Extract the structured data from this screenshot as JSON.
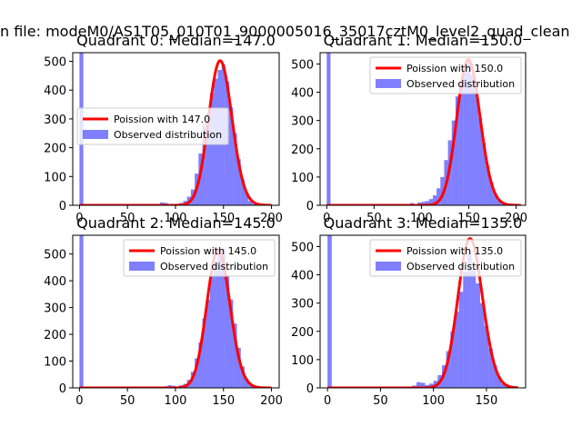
{
  "suptitle": "n file: modeM0/AS1T05_010T01_9000005016_35017cztM0_level2_quad_clean",
  "colors": {
    "line": "#ff0000",
    "bars": "#0000ff",
    "axis": "#000000",
    "legend_border": "#cccccc"
  },
  "chart_data": [
    {
      "type": "bar",
      "title": "Quadrant 0: Median=147.0",
      "median": 147.0,
      "xlim": [
        -7,
        208
      ],
      "ylim": [
        0,
        530
      ],
      "xticks": [
        0,
        50,
        100,
        150,
        200
      ],
      "xtick_labels": [
        "0",
        "50",
        "100",
        "150",
        "200"
      ],
      "yticks": [
        0,
        100,
        200,
        300,
        400,
        500
      ],
      "ytick_labels": [
        "0",
        "100",
        "200",
        "300",
        "400",
        "500"
      ],
      "legend": {
        "loc": "center-left",
        "line_label": "Poission with 147.0",
        "bar_label": "Observed distribution"
      },
      "bin_width": 4,
      "bins": [
        [
          0,
          530
        ],
        [
          84,
          10
        ],
        [
          88,
          8
        ],
        [
          100,
          5
        ],
        [
          104,
          8
        ],
        [
          108,
          15
        ],
        [
          112,
          30
        ],
        [
          116,
          55
        ],
        [
          120,
          110
        ],
        [
          124,
          180
        ],
        [
          128,
          280
        ],
        [
          132,
          320
        ],
        [
          136,
          390
        ],
        [
          140,
          440
        ],
        [
          144,
          470
        ],
        [
          148,
          490
        ],
        [
          152,
          430
        ],
        [
          156,
          340
        ],
        [
          160,
          250
        ],
        [
          164,
          160
        ],
        [
          168,
          90
        ],
        [
          172,
          45
        ],
        [
          176,
          15
        ],
        [
          180,
          5
        ]
      ],
      "poisson": {
        "mean": 147,
        "scale": 502,
        "x_range": [
          0,
          200
        ]
      }
    },
    {
      "type": "bar",
      "title": "Quadrant 1: Median=150.0",
      "median": 150.0,
      "xlim": [
        -7,
        210
      ],
      "ylim": [
        0,
        540
      ],
      "xticks": [
        0,
        50,
        100,
        150,
        200
      ],
      "xtick_labels": [
        "0",
        "50",
        "100",
        "150",
        "200"
      ],
      "yticks": [
        0,
        100,
        200,
        300,
        400,
        500
      ],
      "ytick_labels": [
        "0",
        "100",
        "200",
        "300",
        "400",
        "500"
      ],
      "legend": {
        "loc": "upper-right",
        "line_label": "Poission with 150.0",
        "bar_label": "Observed distribution"
      },
      "bin_width": 4,
      "bins": [
        [
          0,
          540
        ],
        [
          88,
          8
        ],
        [
          96,
          10
        ],
        [
          100,
          12
        ],
        [
          104,
          15
        ],
        [
          108,
          22
        ],
        [
          112,
          35
        ],
        [
          116,
          60
        ],
        [
          120,
          100
        ],
        [
          124,
          160
        ],
        [
          128,
          230
        ],
        [
          132,
          300
        ],
        [
          136,
          385
        ],
        [
          140,
          440
        ],
        [
          144,
          470
        ],
        [
          148,
          510
        ],
        [
          152,
          460
        ],
        [
          156,
          400
        ],
        [
          160,
          310
        ],
        [
          164,
          220
        ],
        [
          168,
          140
        ],
        [
          172,
          80
        ],
        [
          176,
          40
        ],
        [
          180,
          18
        ],
        [
          184,
          5
        ]
      ],
      "poisson": {
        "mean": 150,
        "scale": 515,
        "x_range": [
          0,
          205
        ]
      }
    },
    {
      "type": "bar",
      "title": "Quadrant 2: Median=145.0",
      "median": 145.0,
      "xlim": [
        -7,
        208
      ],
      "ylim": [
        0,
        570
      ],
      "xticks": [
        0,
        50,
        100,
        150,
        200
      ],
      "xtick_labels": [
        "0",
        "50",
        "100",
        "150",
        "200"
      ],
      "yticks": [
        0,
        100,
        200,
        300,
        400,
        500
      ],
      "ytick_labels": [
        "0",
        "100",
        "200",
        "300",
        "400",
        "500"
      ],
      "legend": {
        "loc": "upper-right",
        "line_label": "Poission with 145.0",
        "bar_label": "Observed distribution"
      },
      "bin_width": 4,
      "bins": [
        [
          0,
          570
        ],
        [
          88,
          6
        ],
        [
          92,
          10
        ],
        [
          96,
          8
        ],
        [
          104,
          10
        ],
        [
          108,
          15
        ],
        [
          112,
          30
        ],
        [
          116,
          60
        ],
        [
          120,
          110
        ],
        [
          124,
          170
        ],
        [
          128,
          260
        ],
        [
          132,
          330
        ],
        [
          136,
          420
        ],
        [
          140,
          470
        ],
        [
          144,
          510
        ],
        [
          148,
          520
        ],
        [
          152,
          420
        ],
        [
          156,
          330
        ],
        [
          160,
          240
        ],
        [
          164,
          150
        ],
        [
          168,
          80
        ],
        [
          172,
          35
        ],
        [
          176,
          15
        ],
        [
          180,
          5
        ]
      ],
      "poisson": {
        "mean": 145,
        "scale": 515,
        "x_range": [
          0,
          200
        ]
      }
    },
    {
      "type": "bar",
      "title": "Quadrant 3: Median=135.0",
      "median": 135.0,
      "xlim": [
        -7,
        187
      ],
      "ylim": [
        0,
        540
      ],
      "xticks": [
        0,
        50,
        100,
        150
      ],
      "xtick_labels": [
        "0",
        "50",
        "100",
        "150"
      ],
      "yticks": [
        0,
        100,
        200,
        300,
        400,
        500
      ],
      "ytick_labels": [
        "0",
        "100",
        "200",
        "300",
        "400",
        "500"
      ],
      "legend": {
        "loc": "upper-right",
        "line_label": "Poission with 135.0",
        "bar_label": "Observed distribution"
      },
      "bin_width": 4,
      "bins": [
        [
          0,
          540
        ],
        [
          80,
          8
        ],
        [
          84,
          20
        ],
        [
          88,
          18
        ],
        [
          92,
          10
        ],
        [
          96,
          15
        ],
        [
          100,
          25
        ],
        [
          104,
          45
        ],
        [
          108,
          80
        ],
        [
          112,
          130
        ],
        [
          116,
          200
        ],
        [
          120,
          270
        ],
        [
          124,
          340
        ],
        [
          128,
          410
        ],
        [
          132,
          480
        ],
        [
          136,
          420
        ],
        [
          140,
          370
        ],
        [
          144,
          300
        ],
        [
          148,
          220
        ],
        [
          152,
          140
        ],
        [
          156,
          80
        ],
        [
          160,
          40
        ],
        [
          164,
          15
        ],
        [
          168,
          5
        ]
      ],
      "poisson": {
        "mean": 135,
        "scale": 528,
        "x_range": [
          0,
          180
        ]
      }
    }
  ]
}
